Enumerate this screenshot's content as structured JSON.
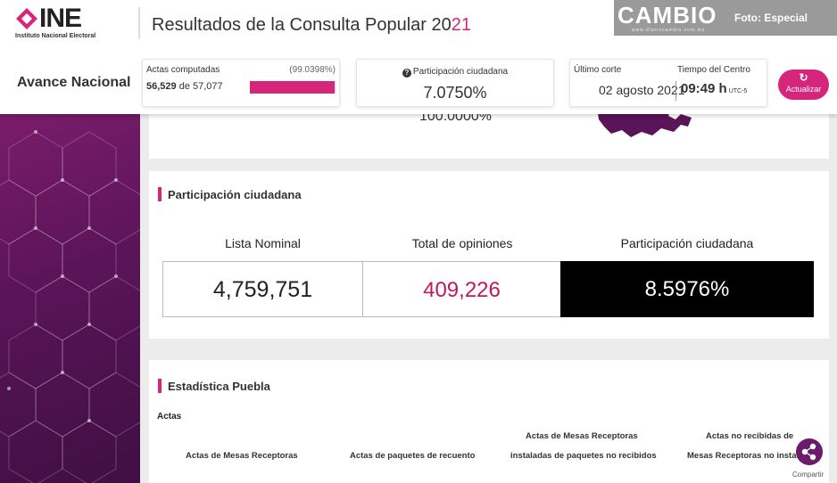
{
  "header": {
    "logo_text": "INE",
    "logo_subtitle": "Instituto Nacional Electoral",
    "title_main": "Resultados de la Consulta Popular 20",
    "title_highlight": "21"
  },
  "watermark": {
    "brand": "CAMBIO",
    "url": "www.diariocambio.com.mx",
    "credit": "Foto: Especial"
  },
  "status": {
    "section_label": "Avance Nacional",
    "actas": {
      "label": "Actas computadas",
      "percent": "(99.0398%)",
      "computed": "56,529",
      "of": " de ",
      "total": "57,077",
      "progress_fraction": 0.990398
    },
    "participacion": {
      "label": "Participación ciudadana",
      "value": "7.0750%"
    },
    "corte": {
      "label": "Último corte",
      "date": "02 agosto 2021",
      "tiempo_label": "Tiempo del Centro",
      "time": "09:49 h",
      "tz": "UTC-5"
    },
    "refresh_label": "Actualizar"
  },
  "top_card": {
    "percent_clipped": "100.0000%"
  },
  "participacion_section": {
    "title": "Participación ciudadana",
    "headers": [
      "Lista Nominal",
      "Total de opiniones",
      "Participación ciudadana"
    ],
    "values": [
      "4,759,751",
      "409,226",
      "8.5976%"
    ]
  },
  "estadistica": {
    "title": "Estadística Puebla",
    "subhead": "Actas",
    "columns": [
      {
        "line1": "",
        "line2": "Actas de Mesas Receptoras"
      },
      {
        "line1": "",
        "line2": "Actas de paquetes de recuento"
      },
      {
        "line1": "Actas de Mesas Receptoras",
        "line2": "instaladas de paquetes no recibidos"
      },
      {
        "line1": "Actas no recibidas de",
        "line2": "Mesas Receptoras no instala"
      }
    ]
  },
  "share_label": "Compartir",
  "colors": {
    "accent": "#d5267b",
    "panel": "#5a1458"
  }
}
